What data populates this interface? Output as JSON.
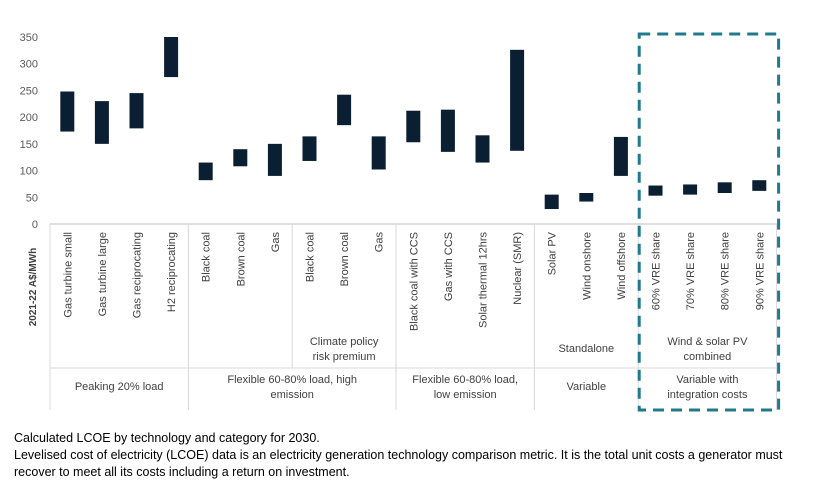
{
  "chart_data": {
    "type": "bar",
    "subtype": "floating-range",
    "ylabel": "2021-22 A$/MWh",
    "ylim": [
      0,
      350
    ],
    "yticks": [
      0,
      50,
      100,
      150,
      200,
      250,
      300,
      350
    ],
    "grid": false,
    "legend": "none",
    "bar_color": "#0b1f33",
    "highlight_border_color": "#1f7a8c",
    "categories": [
      "Gas turbine small",
      "Gas turbine large",
      "Gas reciprocating",
      "H2 reciprocating",
      "Black coal",
      "Brown coal",
      "Gas",
      "Black coal",
      "Brown coal",
      "Gas",
      "Black coal with CCS",
      "Gas with CCS",
      "Solar thermal 12hrs",
      "Nuclear (SMR)",
      "Solar PV",
      "Wind onshore",
      "Wind offshore",
      "60% VRE share",
      "70% VRE share",
      "80% VRE share",
      "90% VRE share"
    ],
    "low": [
      173,
      150,
      179,
      275,
      82,
      108,
      90,
      118,
      185,
      102,
      153,
      135,
      115,
      137,
      28,
      42,
      90,
      53,
      55,
      58,
      62
    ],
    "high": [
      248,
      230,
      245,
      350,
      115,
      140,
      150,
      164,
      242,
      164,
      212,
      214,
      166,
      326,
      55,
      58,
      163,
      72,
      74,
      78,
      82
    ],
    "subgroups": [
      {
        "label": "",
        "start": 0,
        "end": 3
      },
      {
        "label": "",
        "start": 4,
        "end": 6
      },
      {
        "label": "Climate policy risk premium",
        "start": 7,
        "end": 9
      },
      {
        "label": "",
        "start": 10,
        "end": 13
      },
      {
        "label": "Standalone",
        "start": 14,
        "end": 16
      },
      {
        "label": "Wind & solar PV combined",
        "start": 17,
        "end": 20
      }
    ],
    "groups": [
      {
        "label": "Peaking 20% load",
        "start": 0,
        "end": 3
      },
      {
        "label": "Flexible 60-80% load, high emission",
        "start": 4,
        "end": 9
      },
      {
        "label": "Flexible 60-80% load, low emission",
        "start": 10,
        "end": 13
      },
      {
        "label": "Variable",
        "start": 14,
        "end": 16
      },
      {
        "label": "Variable with integration costs",
        "start": 17,
        "end": 20
      }
    ],
    "highlighted_group": 4
  },
  "caption": {
    "line1": "Calculated LCOE by technology and category for 2030.",
    "line2": "Levelised cost of electricity (LCOE) data is an electricity generation technology comparison metric. It is the total unit costs a generator must recover to meet all its costs including a return on investment."
  }
}
